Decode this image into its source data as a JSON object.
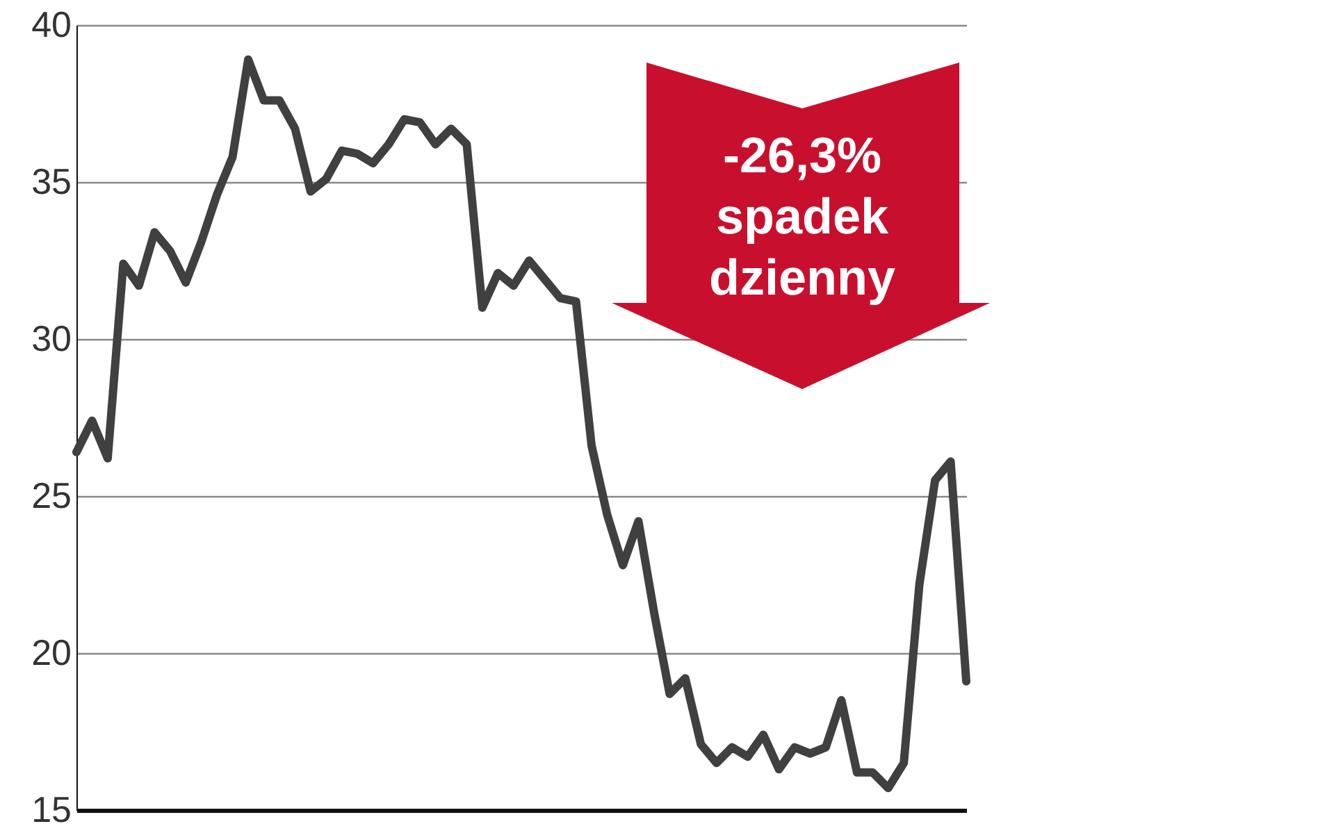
{
  "chart_data": {
    "type": "line",
    "categories": [
      null,
      null,
      null,
      null,
      null,
      null,
      null,
      null,
      null,
      null,
      null,
      null,
      null,
      null,
      null,
      null,
      null,
      null,
      null,
      null,
      null,
      null,
      null,
      null,
      null,
      null,
      null,
      null,
      null,
      null,
      null,
      null,
      null,
      null,
      null,
      null,
      null,
      null,
      null,
      null,
      null,
      null,
      null,
      null,
      null,
      null,
      null,
      null,
      null,
      null,
      null,
      null,
      null,
      null,
      null,
      null,
      null,
      null
    ],
    "series": [
      {
        "color": "#404040",
        "values": [
          26.4,
          27.4,
          26.2,
          32.4,
          31.7,
          33.4,
          32.8,
          31.8,
          33.1,
          34.6,
          35.8,
          38.9,
          37.6,
          37.6,
          36.7,
          34.7,
          35.1,
          36.0,
          35.9,
          35.6,
          36.2,
          37.0,
          36.9,
          36.2,
          36.7,
          36.2,
          31.0,
          32.1,
          31.7,
          32.5,
          31.9,
          31.3,
          31.2,
          26.6,
          24.4,
          22.8,
          24.2,
          21.3,
          18.7,
          19.2,
          17.1,
          16.5,
          17.0,
          16.7,
          17.4,
          16.3,
          17.0,
          16.8,
          17.0,
          18.5,
          16.2,
          16.2,
          15.7,
          16.5,
          22.2,
          25.5,
          26.1,
          19.1
        ]
      }
    ],
    "ylim": [
      15,
      40
    ],
    "yticks": [
      15,
      20,
      25,
      30,
      35,
      40
    ],
    "grid": "y",
    "tick_labels": "y",
    "marker": "none",
    "line_style": "solid",
    "annotations": [
      "-26,3%\nspadek\ndzienny"
    ]
  }
}
